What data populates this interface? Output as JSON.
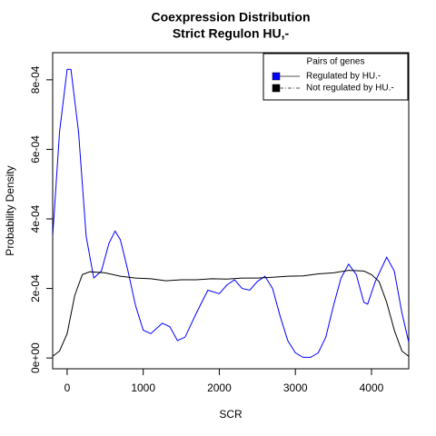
{
  "chart_data": {
    "type": "line",
    "title": "Coexpression Distribution",
    "subtitle": "Strict Regulon HU,-",
    "x_label": "SCR",
    "y_label": "Probability Density",
    "xlim": [
      -190,
      4490
    ],
    "ylim": [
      -3.1e-05,
      0.000878
    ],
    "xticks": [
      0,
      1000,
      2000,
      3000,
      4000
    ],
    "yticks": [
      {
        "value": 0,
        "label": "0e+00"
      },
      {
        "value": 0.0002,
        "label": "2e-04"
      },
      {
        "value": 0.0004,
        "label": "4e-04"
      },
      {
        "value": 0.0006,
        "label": "6e-04"
      },
      {
        "value": 0.0008,
        "label": "8e-04"
      }
    ],
    "legend_title": "Pairs of genes",
    "legend_position": "top-right",
    "series": [
      {
        "name": "Regulated by  HU.-",
        "color": "#0000ff",
        "x": [
          -190,
          -100,
          0,
          50,
          150,
          250,
          350,
          450,
          550,
          630,
          700,
          800,
          900,
          1000,
          1100,
          1250,
          1350,
          1450,
          1550,
          1700,
          1850,
          2000,
          2100,
          2200,
          2300,
          2400,
          2500,
          2600,
          2700,
          2800,
          2900,
          3000,
          3100,
          3200,
          3300,
          3400,
          3500,
          3600,
          3700,
          3800,
          3900,
          3950,
          4050,
          4200,
          4300,
          4400,
          4490
        ],
        "values": [
          0.00035,
          0.00065,
          0.00083,
          0.00083,
          0.00065,
          0.00035,
          0.00023,
          0.00025,
          0.00033,
          0.000365,
          0.00034,
          0.00025,
          0.00015,
          8e-05,
          7e-05,
          0.0001,
          9e-05,
          5e-05,
          6e-05,
          0.00013,
          0.000195,
          0.000185,
          0.00021,
          0.000225,
          0.0002,
          0.000195,
          0.00022,
          0.000235,
          0.0002,
          0.00012,
          5e-05,
          1.5e-05,
          2e-06,
          2e-06,
          1.5e-05,
          6e-05,
          0.00015,
          0.00023,
          0.00027,
          0.00024,
          0.00016,
          0.000155,
          0.00022,
          0.00029,
          0.00025,
          0.00013,
          4.5e-05
        ]
      },
      {
        "name": "Not regulated by  HU.-",
        "color": "#000000",
        "x": [
          -190,
          -100,
          0,
          100,
          200,
          300,
          500,
          700,
          900,
          1100,
          1300,
          1500,
          1700,
          1900,
          2100,
          2300,
          2500,
          2700,
          2900,
          3100,
          3300,
          3500,
          3700,
          3900,
          4000,
          4100,
          4200,
          4300,
          4400,
          4490
        ],
        "values": [
          5e-06,
          2e-05,
          7e-05,
          0.00018,
          0.00024,
          0.000248,
          0.000245,
          0.000235,
          0.00023,
          0.000228,
          0.000222,
          0.000225,
          0.000225,
          0.000228,
          0.000227,
          0.00023,
          0.00023,
          0.000232,
          0.000235,
          0.000236,
          0.000242,
          0.000245,
          0.000252,
          0.00025,
          0.00024,
          0.00022,
          0.00016,
          8e-05,
          2e-05,
          5e-06
        ]
      }
    ]
  }
}
